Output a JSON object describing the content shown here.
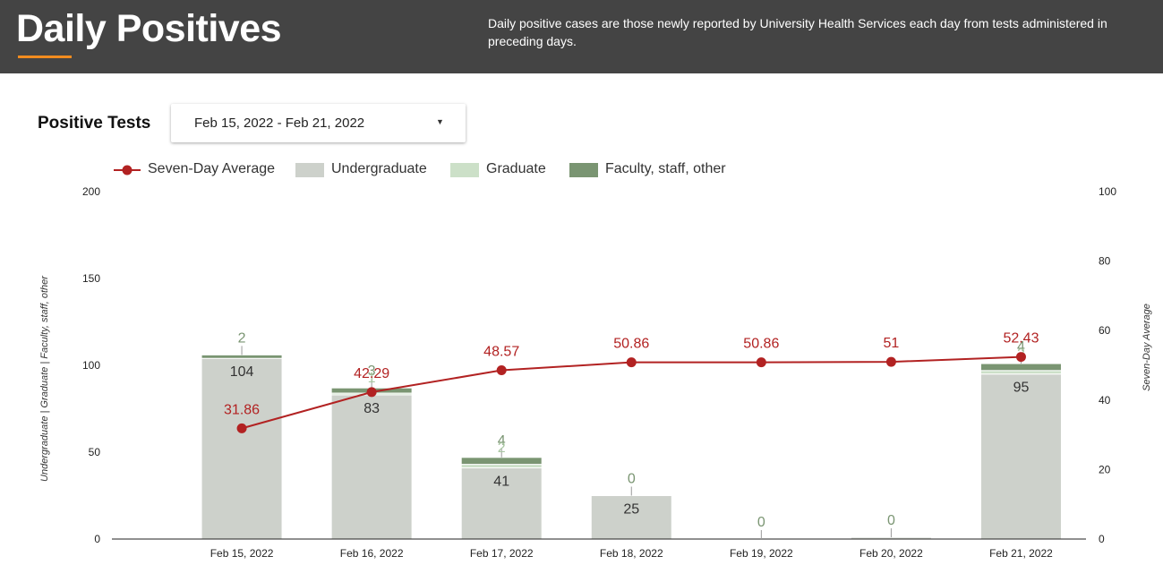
{
  "header": {
    "title": "Daily Positives",
    "description": "Daily positive cases are those newly reported by University Health Services each day from tests administered in preceding days."
  },
  "section_title": "Positive Tests",
  "date_range": {
    "value": "Feb 15, 2022 - Feb 21, 2022"
  },
  "colors": {
    "header_bg": "#444444",
    "accent": "#f28c1f",
    "line": "#b22222",
    "undergraduate": "#cdd1cb",
    "graduate": "#cce0c8",
    "faculty": "#7a9572"
  },
  "legend": [
    {
      "label": "Seven-Day Average",
      "kind": "line",
      "color": "#b22222"
    },
    {
      "label": "Undergraduate",
      "kind": "box",
      "color": "#cdd1cb"
    },
    {
      "label": "Graduate",
      "kind": "box",
      "color": "#cce0c8"
    },
    {
      "label": "Faculty, staff, other",
      "kind": "box",
      "color": "#7a9572"
    }
  ],
  "chart_data": {
    "type": "bar",
    "stacked": true,
    "categories": [
      "Feb 15, 2022",
      "Feb 16, 2022",
      "Feb 17, 2022",
      "Feb 18, 2022",
      "Feb 19, 2022",
      "Feb 20, 2022",
      "Feb 21, 2022"
    ],
    "series": [
      {
        "name": "Undergraduate",
        "axis": "left",
        "values": [
          104,
          83,
          41,
          25,
          0,
          1,
          95
        ],
        "labels": [
          "104",
          "83",
          "41",
          "25",
          "",
          "",
          "95"
        ]
      },
      {
        "name": "Graduate",
        "axis": "left",
        "values": [
          0,
          1,
          2,
          0,
          0,
          0,
          2
        ],
        "labels": [
          "",
          "1",
          "2",
          "",
          "",
          "",
          "2"
        ]
      },
      {
        "name": "Faculty, staff, other",
        "axis": "left",
        "values": [
          2,
          3,
          4,
          0,
          0,
          0,
          4
        ],
        "labels": [
          "2",
          "3",
          "4",
          "0",
          "0",
          "0",
          "4"
        ]
      },
      {
        "name": "Seven-Day Average",
        "type": "line",
        "axis": "right",
        "values": [
          31.86,
          42.29,
          48.57,
          50.86,
          50.86,
          51,
          52.43
        ],
        "labels": [
          "31.86",
          "42.29",
          "48.57",
          "50.86",
          "50.86",
          "51",
          "52.43"
        ]
      }
    ],
    "ylabel": "Undergraduate | Graduate | Faculty, staff, other",
    "y2label": "Seven-Day Average",
    "ylim": [
      0,
      200
    ],
    "y2lim": [
      0,
      100
    ],
    "yticks": [
      "0",
      "50",
      "100",
      "150",
      "200"
    ],
    "y2ticks": [
      "0",
      "20",
      "40",
      "60",
      "80",
      "100"
    ],
    "legend_position": "top-left"
  }
}
